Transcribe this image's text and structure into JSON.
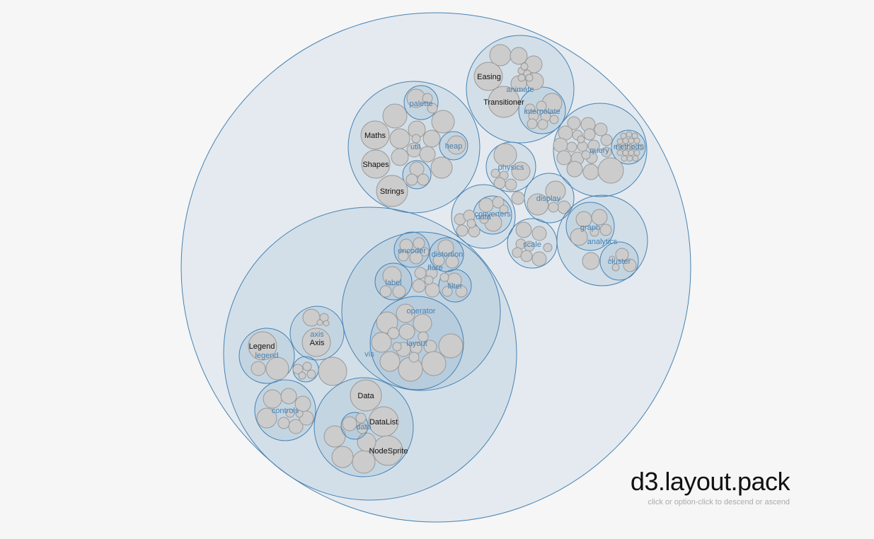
{
  "title": "d3.layout.pack",
  "hint": "click or option-click to descend or ascend",
  "colors": {
    "parent_stroke": "#4682b4",
    "leaf_fill": "#cccccc",
    "leaf_stroke": "#999999"
  },
  "diagram": {
    "type": "circle-pack",
    "root": {
      "children": [
        {
          "label": "vis",
          "children": [
            {
              "label": "flare",
              "children": [
                {
                  "label": "encoder"
                },
                {
                  "label": "distortion"
                },
                {
                  "label": "label"
                },
                {
                  "label": "filter"
                },
                {
                  "label": "operator"
                },
                {
                  "label": "layout"
                }
              ]
            },
            {
              "label": "axis",
              "children": [
                {
                  "label": "Axis"
                }
              ]
            },
            {
              "label": "legend",
              "children": [
                {
                  "label": "Legend"
                }
              ]
            },
            {
              "label": "controls"
            },
            {
              "label": "data",
              "children": [
                {
                  "label": "Data"
                },
                {
                  "label": "DataList"
                },
                {
                  "label": "NodeSprite"
                }
              ]
            }
          ]
        },
        {
          "label": "util",
          "children": [
            {
              "label": "palette"
            },
            {
              "label": "heap"
            },
            {
              "label": "Maths"
            },
            {
              "label": "Shapes"
            },
            {
              "label": "Strings"
            }
          ]
        },
        {
          "label": "animate",
          "children": [
            {
              "label": "interpolate"
            },
            {
              "label": "Easing"
            },
            {
              "label": "Transitioner"
            }
          ]
        },
        {
          "label": "query",
          "children": [
            {
              "label": "methods"
            }
          ]
        },
        {
          "label": "physics"
        },
        {
          "label": "display"
        },
        {
          "label": "data",
          "children": [
            {
              "label": "converters"
            }
          ]
        },
        {
          "label": "scale"
        },
        {
          "label": "analytics",
          "children": [
            {
              "label": "graph"
            },
            {
              "label": "cluster"
            }
          ]
        }
      ]
    }
  }
}
